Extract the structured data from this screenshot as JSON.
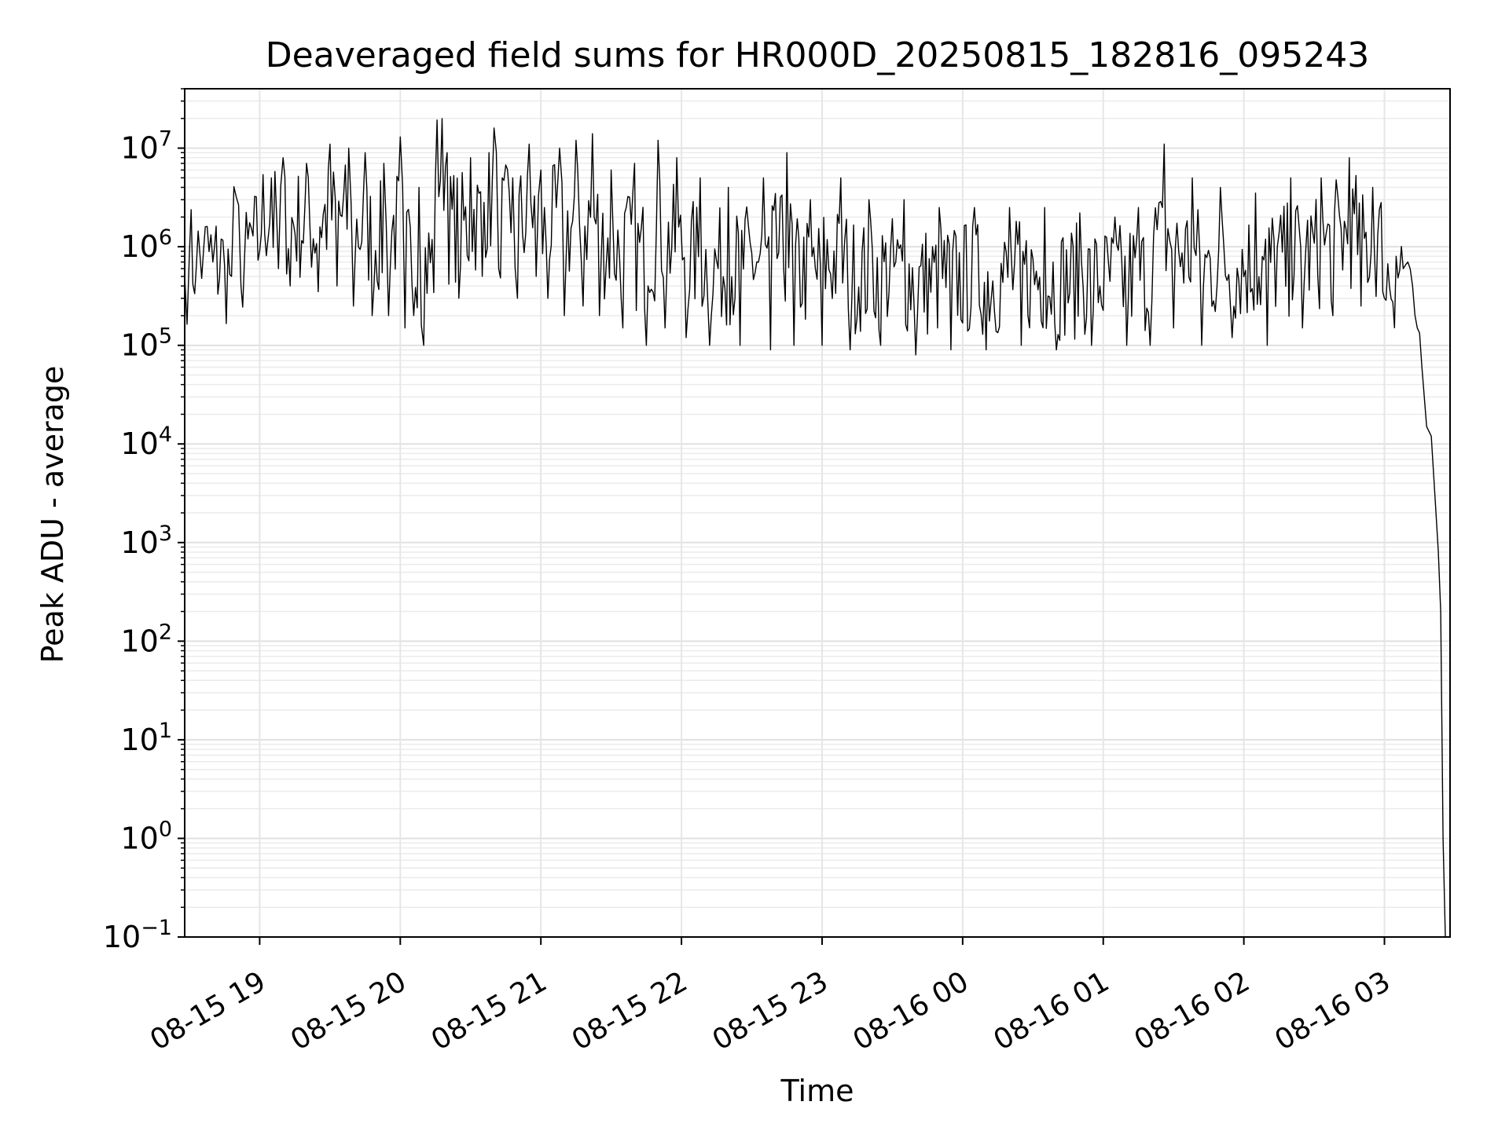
{
  "chart_data": {
    "type": "line",
    "title": "Deaveraged field sums for HR000D_20250815_182816_095243",
    "xlabel": "Time",
    "ylabel": "Peak ADU - average",
    "yscale": "log",
    "ylim": [
      0.1,
      40000000
    ],
    "xlim": [
      "2025-08-15 18:28",
      "2025-08-16 03:28"
    ],
    "grid": "major and minor",
    "x_tick_labels": [
      "08-15 19",
      "08-15 20",
      "08-15 21",
      "08-15 22",
      "08-15 23",
      "08-16 00",
      "08-16 01",
      "08-16 02",
      "08-16 03"
    ],
    "x_tick_times": [
      "2025-08-15 19:00",
      "2025-08-15 20:00",
      "2025-08-15 21:00",
      "2025-08-15 22:00",
      "2025-08-15 23:00",
      "2025-08-16 00:00",
      "2025-08-16 01:00",
      "2025-08-16 02:00",
      "2025-08-16 03:00"
    ],
    "y_tick_labels": [
      {
        "base": "10",
        "exp": "−1"
      },
      {
        "base": "10",
        "exp": "0"
      },
      {
        "base": "10",
        "exp": "1"
      },
      {
        "base": "10",
        "exp": "2"
      },
      {
        "base": "10",
        "exp": "3"
      },
      {
        "base": "10",
        "exp": "4"
      },
      {
        "base": "10",
        "exp": "5"
      },
      {
        "base": "10",
        "exp": "6"
      },
      {
        "base": "10",
        "exp": "7"
      }
    ],
    "y_tick_values": [
      0.1,
      1,
      10,
      100,
      1000,
      10000,
      100000,
      1000000,
      10000000
    ],
    "series": [
      {
        "color": "#000000",
        "points": [
          [
            "2025-08-15 18:28",
            500000
          ],
          [
            "2025-08-15 18:30",
            850000
          ],
          [
            "2025-08-15 18:33",
            650000
          ],
          [
            "2025-08-15 18:36",
            900000
          ],
          [
            "2025-08-15 18:40",
            700000
          ],
          [
            "2025-08-15 18:45",
            650000
          ],
          [
            "2025-08-15 18:48",
            500000
          ],
          [
            "2025-08-15 18:50",
            3200000
          ],
          [
            "2025-08-15 18:52",
            400000
          ],
          [
            "2025-08-15 18:55",
            1200000
          ],
          [
            "2025-08-15 19:00",
            900000
          ],
          [
            "2025-08-15 19:05",
            5000000
          ],
          [
            "2025-08-15 19:08",
            600000
          ],
          [
            "2025-08-15 19:10",
            8000000
          ],
          [
            "2025-08-15 19:13",
            400000
          ],
          [
            "2025-08-15 19:20",
            7000000
          ],
          [
            "2025-08-15 19:25",
            350000
          ],
          [
            "2025-08-15 19:30",
            11000000
          ],
          [
            "2025-08-15 19:33",
            400000
          ],
          [
            "2025-08-15 19:38",
            10000000
          ],
          [
            "2025-08-15 19:40",
            250000
          ],
          [
            "2025-08-15 19:45",
            9000000
          ],
          [
            "2025-08-15 19:48",
            200000
          ],
          [
            "2025-08-15 19:53",
            7000000
          ],
          [
            "2025-08-15 19:55",
            200000
          ],
          [
            "2025-08-15 20:00",
            13000000
          ],
          [
            "2025-08-15 20:02",
            150000
          ],
          [
            "2025-08-15 20:08",
            4000000
          ],
          [
            "2025-08-15 20:10",
            100000
          ],
          [
            "2025-08-15 20:15",
            5000000
          ],
          [
            "2025-08-15 20:20",
            9000000
          ],
          [
            "2025-08-15 20:25",
            300000
          ],
          [
            "2025-08-15 20:30",
            8000000
          ],
          [
            "2025-08-15 20:35",
            500000
          ],
          [
            "2025-08-15 20:40",
            16000000
          ],
          [
            "2025-08-15 20:42",
            600000
          ],
          [
            "2025-08-15 20:48",
            5000000
          ],
          [
            "2025-08-15 20:50",
            300000
          ],
          [
            "2025-08-15 20:55",
            11000000
          ],
          [
            "2025-08-15 20:58",
            500000
          ],
          [
            "2025-08-15 21:00",
            6000000
          ],
          [
            "2025-08-15 21:03",
            300000
          ],
          [
            "2025-08-15 21:08",
            10000000
          ],
          [
            "2025-08-15 21:10",
            200000
          ],
          [
            "2025-08-15 21:15",
            12000000
          ],
          [
            "2025-08-15 21:18",
            250000
          ],
          [
            "2025-08-15 21:22",
            14000000
          ],
          [
            "2025-08-15 21:25",
            200000
          ],
          [
            "2025-08-15 21:30",
            6000000
          ],
          [
            "2025-08-15 21:35",
            150000
          ],
          [
            "2025-08-15 21:40",
            7000000
          ],
          [
            "2025-08-15 21:45",
            100000
          ],
          [
            "2025-08-15 21:50",
            12000000
          ],
          [
            "2025-08-15 21:53",
            150000
          ],
          [
            "2025-08-15 21:58",
            8000000
          ],
          [
            "2025-08-15 22:02",
            120000
          ],
          [
            "2025-08-15 22:08",
            5000000
          ],
          [
            "2025-08-15 22:12",
            100000
          ],
          [
            "2025-08-15 22:20",
            4000000
          ],
          [
            "2025-08-15 22:25",
            100000
          ],
          [
            "2025-08-15 22:35",
            5000000
          ],
          [
            "2025-08-15 22:38",
            90000
          ],
          [
            "2025-08-15 22:45",
            9000000
          ],
          [
            "2025-08-15 22:48",
            100000
          ],
          [
            "2025-08-15 22:55",
            3000000
          ],
          [
            "2025-08-15 23:00",
            100000
          ],
          [
            "2025-08-15 23:08",
            5000000
          ],
          [
            "2025-08-15 23:12",
            90000
          ],
          [
            "2025-08-15 23:20",
            3000000
          ],
          [
            "2025-08-15 23:25",
            100000
          ],
          [
            "2025-08-15 23:35",
            3000000
          ],
          [
            "2025-08-15 23:40",
            80000
          ],
          [
            "2025-08-15 23:50",
            2500000
          ],
          [
            "2025-08-15 23:55",
            90000
          ],
          [
            "2025-08-16 00:05",
            2500000
          ],
          [
            "2025-08-16 00:10",
            90000
          ],
          [
            "2025-08-16 00:20",
            2500000
          ],
          [
            "2025-08-16 00:25",
            100000
          ],
          [
            "2025-08-16 00:35",
            2500000
          ],
          [
            "2025-08-16 00:40",
            90000
          ],
          [
            "2025-08-16 00:50",
            2200000
          ],
          [
            "2025-08-16 00:55",
            100000
          ],
          [
            "2025-08-16 01:05",
            2000000
          ],
          [
            "2025-08-16 01:10",
            100000
          ],
          [
            "2025-08-16 01:15",
            2500000
          ],
          [
            "2025-08-16 01:20",
            100000
          ],
          [
            "2025-08-16 01:26",
            11000000
          ],
          [
            "2025-08-16 01:30",
            150000
          ],
          [
            "2025-08-16 01:38",
            5000000
          ],
          [
            "2025-08-16 01:42",
            100000
          ],
          [
            "2025-08-16 01:50",
            4000000
          ],
          [
            "2025-08-16 01:55",
            120000
          ],
          [
            "2025-08-16 02:05",
            3500000
          ],
          [
            "2025-08-16 02:10",
            100000
          ],
          [
            "2025-08-16 02:20",
            5000000
          ],
          [
            "2025-08-16 02:25",
            150000
          ],
          [
            "2025-08-16 02:33",
            5000000
          ],
          [
            "2025-08-16 02:38",
            200000
          ],
          [
            "2025-08-16 02:45",
            8000000
          ],
          [
            "2025-08-16 02:50",
            250000
          ],
          [
            "2025-08-16 02:55",
            4000000
          ],
          [
            "2025-08-16 03:00",
            300000
          ],
          [
            "2025-08-16 03:05",
            800000
          ],
          [
            "2025-08-16 03:08",
            600000
          ],
          [
            "2025-08-16 03:10",
            700000
          ],
          [
            "2025-08-16 03:12",
            400000
          ],
          [
            "2025-08-16 03:14",
            150000
          ],
          [
            "2025-08-16 03:16",
            60000
          ],
          [
            "2025-08-16 03:18",
            15000
          ],
          [
            "2025-08-16 03:20",
            12000
          ],
          [
            "2025-08-16 03:22",
            2000
          ],
          [
            "2025-08-16 03:23",
            800
          ],
          [
            "2025-08-16 03:24",
            200
          ],
          [
            "2025-08-16 03:25",
            1
          ],
          [
            "2025-08-16 03:26",
            0.1
          ]
        ]
      }
    ]
  }
}
